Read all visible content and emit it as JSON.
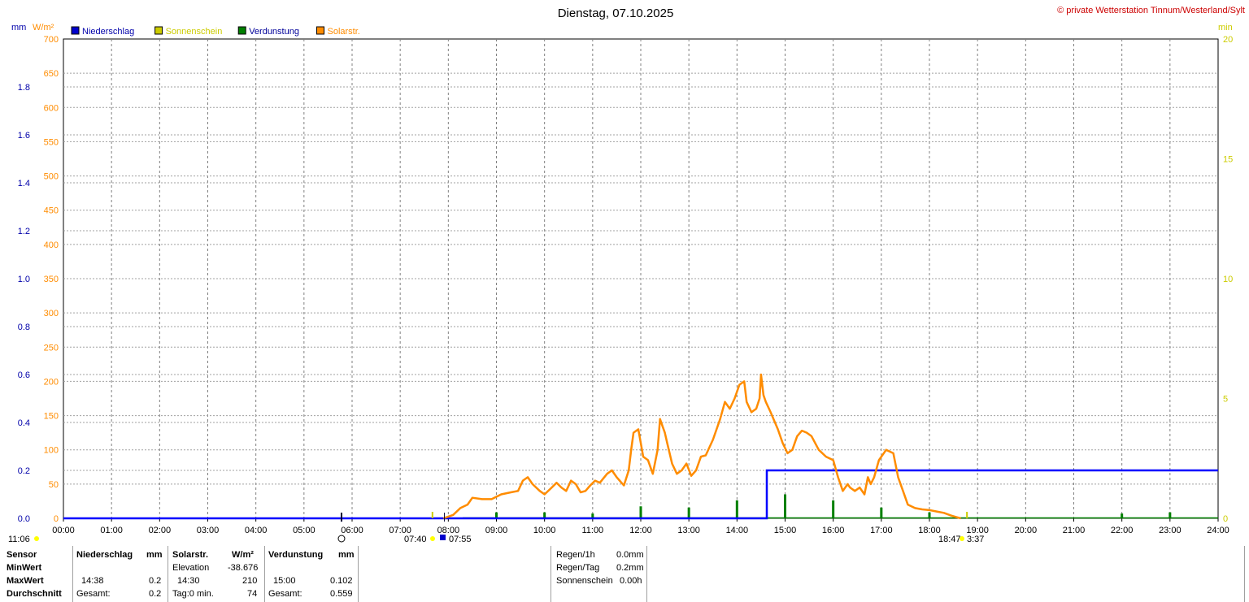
{
  "title": "Dienstag, 07.10.2025",
  "copyright": "© private Wetterstation Tinnum/Westerland/Sylt",
  "axis_units": {
    "left_mm": "mm",
    "left_wm2": "W/m²",
    "right_min": "min"
  },
  "colors": {
    "rain": "#0000ff",
    "sun": "#cccc00",
    "evap": "#008000",
    "solar": "#ff8c00",
    "grid": "#808080"
  },
  "legend": [
    {
      "label": "Niederschlag",
      "color": "#0000cc",
      "text_color": "#0000aa"
    },
    {
      "label": "Sonnenschein",
      "color": "#cccc00",
      "text_color": "#cccc00"
    },
    {
      "label": "Verdunstung",
      "color": "#008000",
      "text_color": "#000099"
    },
    {
      "label": "Solarstr.",
      "color": "#ff8c00",
      "text_color": "#ff8c00"
    }
  ],
  "chart_data": {
    "type": "line",
    "title": "Dienstag, 07.10.2025",
    "x_ticks": [
      "00:00",
      "01:00",
      "02:00",
      "03:00",
      "04:00",
      "05:00",
      "06:00",
      "07:00",
      "08:00",
      "09:00",
      "10:00",
      "11:00",
      "12:00",
      "13:00",
      "14:00",
      "15:00",
      "16:00",
      "17:00",
      "18:00",
      "19:00",
      "20:00",
      "21:00",
      "22:00",
      "23:00",
      "24:00"
    ],
    "y_mm_ticks": [
      "0.0",
      "0.2",
      "0.4",
      "0.6",
      "0.8",
      "1.0",
      "1.2",
      "1.4",
      "1.6",
      "1.8"
    ],
    "y_mm_range": [
      0,
      2.0
    ],
    "y_wm2_ticks": [
      "0",
      "50",
      "100",
      "150",
      "200",
      "250",
      "300",
      "350",
      "400",
      "450",
      "500",
      "550",
      "600",
      "650",
      "700"
    ],
    "y_wm2_range": [
      0,
      700
    ],
    "y_min_ticks": [
      "0",
      "5",
      "10",
      "15",
      "20"
    ],
    "y_min_range": [
      0,
      20
    ],
    "grid": true,
    "series": [
      {
        "name": "Solarstr.",
        "axis": "wm2",
        "points": [
          [
            7.9,
            0
          ],
          [
            8.1,
            5
          ],
          [
            8.25,
            15
          ],
          [
            8.4,
            20
          ],
          [
            8.5,
            30
          ],
          [
            8.7,
            28
          ],
          [
            8.9,
            28
          ],
          [
            9.1,
            35
          ],
          [
            9.3,
            38
          ],
          [
            9.45,
            40
          ],
          [
            9.55,
            55
          ],
          [
            9.65,
            60
          ],
          [
            9.75,
            50
          ],
          [
            9.9,
            40
          ],
          [
            10.0,
            35
          ],
          [
            10.15,
            45
          ],
          [
            10.25,
            52
          ],
          [
            10.35,
            45
          ],
          [
            10.45,
            40
          ],
          [
            10.55,
            55
          ],
          [
            10.65,
            50
          ],
          [
            10.75,
            38
          ],
          [
            10.85,
            40
          ],
          [
            10.95,
            48
          ],
          [
            11.05,
            55
          ],
          [
            11.15,
            52
          ],
          [
            11.3,
            65
          ],
          [
            11.4,
            70
          ],
          [
            11.5,
            60
          ],
          [
            11.6,
            52
          ],
          [
            11.65,
            48
          ],
          [
            11.75,
            70
          ],
          [
            11.8,
            100
          ],
          [
            11.85,
            125
          ],
          [
            11.95,
            130
          ],
          [
            12.05,
            90
          ],
          [
            12.15,
            85
          ],
          [
            12.25,
            65
          ],
          [
            12.35,
            100
          ],
          [
            12.4,
            145
          ],
          [
            12.45,
            135
          ],
          [
            12.5,
            125
          ],
          [
            12.55,
            110
          ],
          [
            12.65,
            80
          ],
          [
            12.75,
            65
          ],
          [
            12.85,
            70
          ],
          [
            12.95,
            80
          ],
          [
            13.05,
            62
          ],
          [
            13.15,
            70
          ],
          [
            13.25,
            90
          ],
          [
            13.35,
            92
          ],
          [
            13.5,
            115
          ],
          [
            13.65,
            145
          ],
          [
            13.75,
            170
          ],
          [
            13.85,
            160
          ],
          [
            13.95,
            175
          ],
          [
            14.05,
            195
          ],
          [
            14.15,
            200
          ],
          [
            14.2,
            170
          ],
          [
            14.3,
            155
          ],
          [
            14.4,
            160
          ],
          [
            14.47,
            175
          ],
          [
            14.5,
            210
          ],
          [
            14.55,
            180
          ],
          [
            14.6,
            170
          ],
          [
            14.7,
            155
          ],
          [
            14.85,
            130
          ],
          [
            14.95,
            110
          ],
          [
            15.05,
            95
          ],
          [
            15.15,
            100
          ],
          [
            15.25,
            120
          ],
          [
            15.35,
            128
          ],
          [
            15.45,
            125
          ],
          [
            15.55,
            120
          ],
          [
            15.7,
            100
          ],
          [
            15.85,
            90
          ],
          [
            16.0,
            85
          ],
          [
            16.1,
            60
          ],
          [
            16.2,
            40
          ],
          [
            16.3,
            50
          ],
          [
            16.35,
            45
          ],
          [
            16.45,
            40
          ],
          [
            16.55,
            45
          ],
          [
            16.65,
            35
          ],
          [
            16.72,
            60
          ],
          [
            16.78,
            50
          ],
          [
            16.85,
            60
          ],
          [
            16.95,
            85
          ],
          [
            17.1,
            100
          ],
          [
            17.25,
            95
          ],
          [
            17.35,
            60
          ],
          [
            17.45,
            40
          ],
          [
            17.55,
            20
          ],
          [
            17.7,
            15
          ],
          [
            17.85,
            13
          ],
          [
            18.0,
            12
          ],
          [
            18.15,
            10
          ],
          [
            18.3,
            8
          ],
          [
            18.45,
            4
          ],
          [
            18.55,
            2
          ],
          [
            18.65,
            0
          ]
        ]
      },
      {
        "name": "Niederschlag",
        "axis": "mm",
        "points": [
          [
            0,
            0
          ],
          [
            14.62,
            0
          ],
          [
            14.62,
            0.2
          ],
          [
            24,
            0.2
          ]
        ]
      },
      {
        "name": "Verdunstung",
        "axis": "min",
        "spikes": [
          [
            9.0,
            0.25
          ],
          [
            10.0,
            0.25
          ],
          [
            11.0,
            0.2
          ],
          [
            12.0,
            0.5
          ],
          [
            13.0,
            0.45
          ],
          [
            14.0,
            0.75
          ],
          [
            15.0,
            1.0
          ],
          [
            16.0,
            0.75
          ],
          [
            17.0,
            0.45
          ],
          [
            18.0,
            0.25
          ],
          [
            22.0,
            0.2
          ],
          [
            23.0,
            0.25
          ]
        ]
      },
      {
        "name": "Sonnenschein",
        "axis": "min",
        "markers": [
          7.67,
          18.78
        ]
      }
    ]
  },
  "bottom_labels": {
    "left_time": "11:06",
    "sunrise": "07:40",
    "sunrise2": "07:55",
    "sunset": "18:47",
    "sunset2": "3:37"
  },
  "table": {
    "sensor": {
      "header": "Sensor",
      "rows": [
        "MinWert",
        "MaxWert",
        "Durchschnitt"
      ]
    },
    "niederschlag": {
      "header": "Niederschlag",
      "unit": "mm",
      "max_time": "14:38",
      "max_val": "0.2",
      "total_label": "Gesamt:",
      "total_val": "0.2"
    },
    "solar": {
      "header": "Solarstr.",
      "unit": "W/m²",
      "min_label": "Elevation",
      "min_val": "-38.676",
      "max_time": "14:30",
      "max_val": "210",
      "avg_label": "Tag:0 min.",
      "avg_val": "74"
    },
    "verdunstung": {
      "header": "Verdunstung",
      "unit": "mm",
      "max_time": "15:00",
      "max_val": "0.102",
      "total_label": "Gesamt:",
      "total_val": "0.559"
    },
    "summary": [
      {
        "label": "Regen/1h",
        "value": "0.0mm"
      },
      {
        "label": "Regen/Tag",
        "value": "0.2mm"
      },
      {
        "label": "Sonnenschein",
        "value": "0.00h"
      }
    ]
  }
}
